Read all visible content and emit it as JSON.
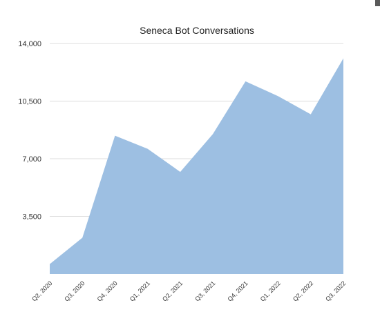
{
  "chart_data": {
    "type": "area",
    "title": "Seneca Bot Conversations",
    "xlabel": "",
    "ylabel": "",
    "categories": [
      "Q2, 2020",
      "Q3, 2020",
      "Q4, 2020",
      "Q1, 2021",
      "Q2, 2021",
      "Q3, 2021",
      "Q4, 2021",
      "Q1, 2022",
      "Q2, 2022",
      "Q3, 2022"
    ],
    "series": [
      {
        "values": [
          600,
          2200,
          8400,
          7600,
          6200,
          8500,
          11700,
          10800,
          9700,
          13100
        ]
      }
    ],
    "ylim": [
      0,
      14000
    ],
    "yticks": [
      3500,
      7000,
      10500,
      14000
    ],
    "ytick_labels": [
      "3,500",
      "7,000",
      "10,500",
      "14,000"
    ],
    "grid": true,
    "colors": {
      "fill": "#9dbfe2",
      "grid": "#dcdcdc",
      "text": "#333333",
      "title": "#222222"
    }
  }
}
